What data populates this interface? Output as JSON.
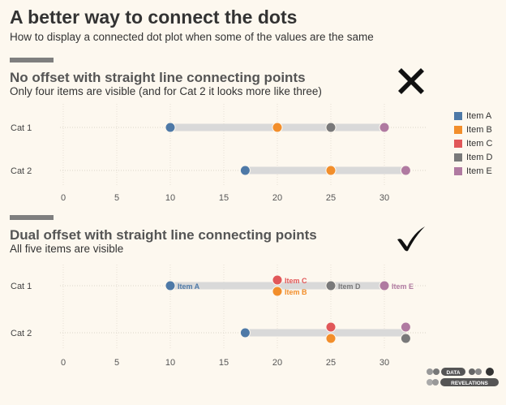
{
  "header": {
    "title": "A better way to connect the dots",
    "subtitle": "How to display a connected dot plot when some of the values are the same"
  },
  "section1": {
    "title": "No offset with straight line connecting points",
    "subtitle": "Only four items are visible (and for Cat 2 it looks more like three)",
    "icon": "cross-mark-icon"
  },
  "section2": {
    "title": "Dual offset with straight line connecting points",
    "subtitle": "All five items are visible",
    "icon": "check-mark-icon"
  },
  "legend": [
    {
      "label": "Item A",
      "color": "#4e79a7"
    },
    {
      "label": "Item B",
      "color": "#f28e2b"
    },
    {
      "label": "Item C",
      "color": "#e15759"
    },
    {
      "label": "Item D",
      "color": "#79797a"
    },
    {
      "label": "Item E",
      "color": "#b07aa1"
    }
  ],
  "logo": {
    "line1": "DATA",
    "line2": "REVELATIONS"
  },
  "chart_data": [
    {
      "type": "scatter",
      "variant": "connected-dot-plot-no-offset",
      "categories": [
        "Cat 1",
        "Cat 2"
      ],
      "xticks": [
        0,
        5,
        10,
        15,
        20,
        25,
        30
      ],
      "xlim": [
        -1,
        34
      ],
      "series": [
        {
          "name": "Item A",
          "values": [
            10,
            17
          ]
        },
        {
          "name": "Item B",
          "values": [
            20,
            25
          ]
        },
        {
          "name": "Item C",
          "values": [
            20,
            25
          ]
        },
        {
          "name": "Item D",
          "values": [
            25,
            32
          ]
        },
        {
          "name": "Item E",
          "values": [
            30,
            32
          ]
        }
      ]
    },
    {
      "type": "scatter",
      "variant": "connected-dot-plot-dual-offset",
      "categories": [
        "Cat 1",
        "Cat 2"
      ],
      "xticks": [
        0,
        5,
        10,
        15,
        20,
        25,
        30
      ],
      "xlim": [
        -1,
        34
      ],
      "series": [
        {
          "name": "Item A",
          "values": [
            10,
            17
          ]
        },
        {
          "name": "Item B",
          "values": [
            20,
            25
          ]
        },
        {
          "name": "Item C",
          "values": [
            20,
            25
          ]
        },
        {
          "name": "Item D",
          "values": [
            25,
            32
          ]
        },
        {
          "name": "Item E",
          "values": [
            30,
            32
          ]
        }
      ],
      "data_labels": [
        "Item A",
        "Item C",
        "Item B",
        "Item D",
        "Item E"
      ]
    }
  ]
}
